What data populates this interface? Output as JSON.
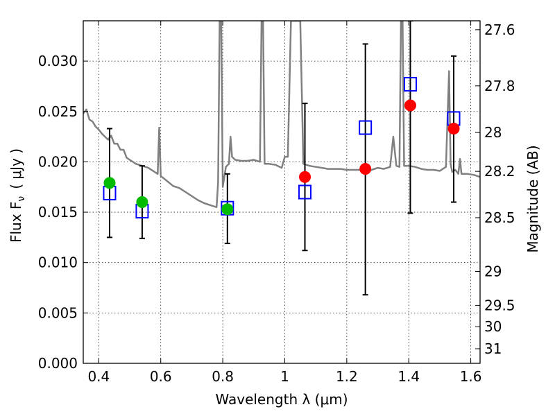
{
  "chart_data": {
    "type": "scatter",
    "xlabel": "Wavelength  λ (μm)",
    "ylabel": "Flux  F",
    "ylabel_sub": "ν",
    "ylabel_unit": "( μJy )",
    "y2label": "Magnitude (AB)",
    "xlim": [
      0.35,
      1.63
    ],
    "ylim": [
      0.0,
      0.034
    ],
    "grid": true,
    "x_ticks": [
      {
        "value": 0.4,
        "label": "0.4"
      },
      {
        "value": 0.6,
        "label": "0.6"
      },
      {
        "value": 0.8,
        "label": "0.8"
      },
      {
        "value": 1.0,
        "label": "1"
      },
      {
        "value": 1.2,
        "label": "1.2"
      },
      {
        "value": 1.4,
        "label": "1.4"
      },
      {
        "value": 1.6,
        "label": "1.6"
      }
    ],
    "y_ticks": [
      {
        "value": 0.0,
        "label": "0.000"
      },
      {
        "value": 0.005,
        "label": "0.005"
      },
      {
        "value": 0.01,
        "label": "0.010"
      },
      {
        "value": 0.015,
        "label": "0.015"
      },
      {
        "value": 0.02,
        "label": "0.020"
      },
      {
        "value": 0.025,
        "label": "0.025"
      },
      {
        "value": 0.03,
        "label": "0.030"
      }
    ],
    "y2_ticks": [
      {
        "value": 27.6,
        "label": "27.6"
      },
      {
        "value": 27.8,
        "label": "27.8"
      },
      {
        "value": 28.0,
        "label": "28"
      },
      {
        "value": 28.2,
        "label": "28.2"
      },
      {
        "value": 28.5,
        "label": "28.5"
      },
      {
        "value": 29.0,
        "label": "29"
      },
      {
        "value": 29.5,
        "label": "29.5"
      },
      {
        "value": 30.0,
        "label": "30"
      },
      {
        "value": 31.0,
        "label": "31"
      }
    ],
    "series": [
      {
        "kind": "spectrum",
        "color": "#808080",
        "points": [
          [
            0.35,
            0.0248
          ],
          [
            0.36,
            0.0252
          ],
          [
            0.37,
            0.0242
          ],
          [
            0.38,
            0.024
          ],
          [
            0.39,
            0.0235
          ],
          [
            0.4,
            0.0232
          ],
          [
            0.41,
            0.0228
          ],
          [
            0.42,
            0.0225
          ],
          [
            0.43,
            0.0222
          ],
          [
            0.44,
            0.0226
          ],
          [
            0.45,
            0.0218
          ],
          [
            0.46,
            0.0218
          ],
          [
            0.47,
            0.0212
          ],
          [
            0.48,
            0.0212
          ],
          [
            0.49,
            0.0204
          ],
          [
            0.5,
            0.0202
          ],
          [
            0.52,
            0.0198
          ],
          [
            0.54,
            0.0196
          ],
          [
            0.56,
            0.0194
          ],
          [
            0.58,
            0.019
          ],
          [
            0.59,
            0.0188
          ],
          [
            0.595,
            0.0234
          ],
          [
            0.6,
            0.0186
          ],
          [
            0.62,
            0.0181
          ],
          [
            0.64,
            0.0176
          ],
          [
            0.66,
            0.0174
          ],
          [
            0.68,
            0.017
          ],
          [
            0.7,
            0.0166
          ],
          [
            0.72,
            0.0162
          ],
          [
            0.74,
            0.0159
          ],
          [
            0.76,
            0.0157
          ],
          [
            0.78,
            0.0155
          ],
          [
            0.785,
            0.018
          ],
          [
            0.79,
            0.034
          ],
          [
            0.795,
            0.034
          ],
          [
            0.8,
            0.0175
          ],
          [
            0.81,
            0.0195
          ],
          [
            0.82,
            0.0198
          ],
          [
            0.825,
            0.0225
          ],
          [
            0.83,
            0.0205
          ],
          [
            0.84,
            0.0202
          ],
          [
            0.86,
            0.0201
          ],
          [
            0.88,
            0.0201
          ],
          [
            0.9,
            0.0202
          ],
          [
            0.92,
            0.02
          ],
          [
            0.925,
            0.034
          ],
          [
            0.93,
            0.034
          ],
          [
            0.935,
            0.0198
          ],
          [
            0.95,
            0.0198
          ],
          [
            0.97,
            0.0197
          ],
          [
            0.99,
            0.0194
          ],
          [
            1.0,
            0.0205
          ],
          [
            1.01,
            0.0205
          ],
          [
            1.02,
            0.034
          ],
          [
            1.03,
            0.034
          ],
          [
            1.04,
            0.034
          ],
          [
            1.05,
            0.034
          ],
          [
            1.06,
            0.0198
          ],
          [
            1.08,
            0.0196
          ],
          [
            1.1,
            0.0195
          ],
          [
            1.12,
            0.0194
          ],
          [
            1.14,
            0.0193
          ],
          [
            1.16,
            0.0193
          ],
          [
            1.18,
            0.0193
          ],
          [
            1.2,
            0.0192
          ],
          [
            1.22,
            0.0192
          ],
          [
            1.24,
            0.0192
          ],
          [
            1.26,
            0.0191
          ],
          [
            1.28,
            0.0192
          ],
          [
            1.3,
            0.0194
          ],
          [
            1.32,
            0.0193
          ],
          [
            1.34,
            0.0195
          ],
          [
            1.35,
            0.0225
          ],
          [
            1.36,
            0.0196
          ],
          [
            1.37,
            0.0195
          ],
          [
            1.375,
            0.034
          ],
          [
            1.38,
            0.034
          ],
          [
            1.385,
            0.0196
          ],
          [
            1.4,
            0.0196
          ],
          [
            1.42,
            0.0195
          ],
          [
            1.44,
            0.0193
          ],
          [
            1.46,
            0.0192
          ],
          [
            1.48,
            0.0192
          ],
          [
            1.5,
            0.0191
          ],
          [
            1.52,
            0.0195
          ],
          [
            1.53,
            0.029
          ],
          [
            1.535,
            0.0198
          ],
          [
            1.54,
            0.019
          ],
          [
            1.55,
            0.0192
          ],
          [
            1.56,
            0.0188
          ],
          [
            1.565,
            0.0203
          ],
          [
            1.57,
            0.0188
          ],
          [
            1.59,
            0.0188
          ],
          [
            1.61,
            0.0187
          ],
          [
            1.63,
            0.0185
          ]
        ]
      },
      {
        "kind": "errorbar",
        "color": "#000000",
        "points": [
          {
            "x": 0.435,
            "low": 0.0125,
            "high": 0.0233
          },
          {
            "x": 0.54,
            "low": 0.0124,
            "high": 0.0196
          },
          {
            "x": 0.815,
            "low": 0.0119,
            "high": 0.0188
          },
          {
            "x": 1.065,
            "low": 0.0112,
            "high": 0.0258
          },
          {
            "x": 1.26,
            "low": 0.0068,
            "high": 0.0317
          },
          {
            "x": 1.405,
            "low": 0.0149,
            "high": 0.034
          },
          {
            "x": 1.545,
            "low": 0.016,
            "high": 0.0305
          }
        ]
      },
      {
        "kind": "square",
        "color": "#0000ff",
        "points": [
          [
            0.435,
            0.0169
          ],
          [
            0.54,
            0.0151
          ],
          [
            0.815,
            0.0154
          ],
          [
            1.065,
            0.017
          ],
          [
            1.26,
            0.0234
          ],
          [
            1.405,
            0.0277
          ],
          [
            1.545,
            0.0243
          ]
        ]
      },
      {
        "kind": "circle",
        "color": "#00bb00",
        "points": [
          [
            0.435,
            0.0179
          ],
          [
            0.54,
            0.016
          ],
          [
            0.815,
            0.0153
          ]
        ]
      },
      {
        "kind": "circle",
        "color": "#ff0000",
        "points": [
          [
            1.065,
            0.0185
          ],
          [
            1.26,
            0.0193
          ],
          [
            1.405,
            0.0256
          ],
          [
            1.545,
            0.0233
          ]
        ]
      }
    ]
  }
}
